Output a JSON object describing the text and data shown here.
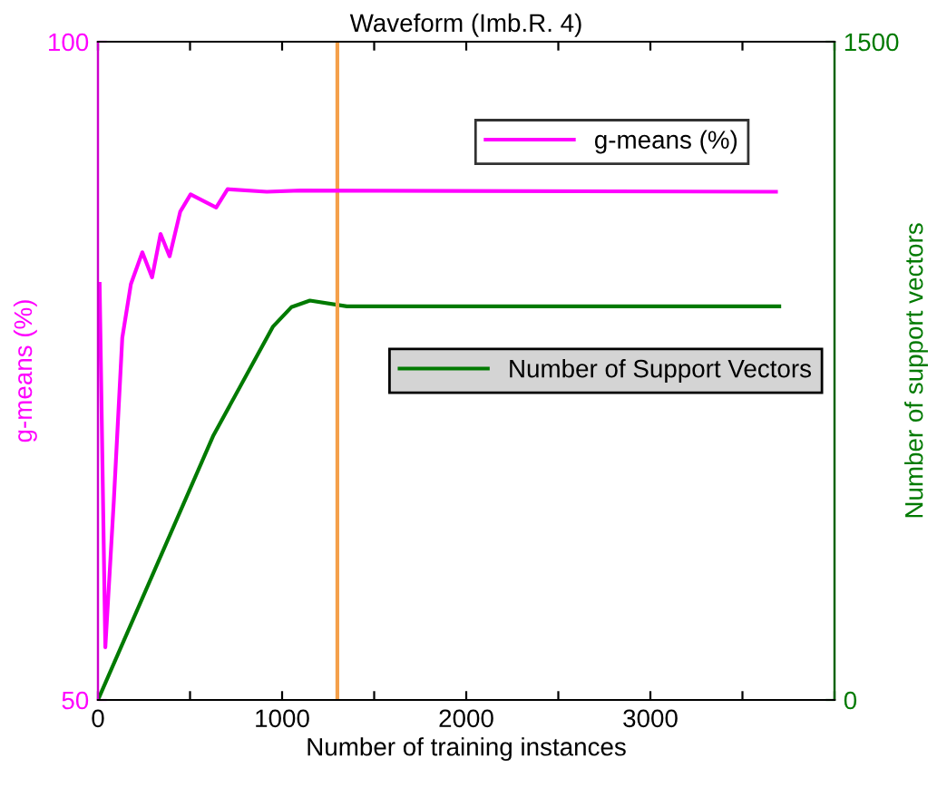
{
  "chart_data": {
    "type": "line",
    "title": "Waveform (Imb.R. 4)",
    "xlabel": "Number of training instances",
    "ylabel": "g-means (%)",
    "y2label": "Number of support vectors",
    "xlim": [
      0,
      4000
    ],
    "xticks": [
      0,
      {
        "value": 500,
        "label": null
      },
      1000,
      {
        "value": 1500,
        "label": null
      },
      2000,
      {
        "value": 2500,
        "label": null
      },
      3000,
      {
        "value": 3500,
        "label": null
      },
      {
        "value": 4000,
        "label": null
      }
    ],
    "ylim": [
      50,
      100
    ],
    "yticks": [
      50,
      100
    ],
    "y2lim": [
      0,
      1500
    ],
    "y2ticks": [
      0,
      1500
    ],
    "series": [
      {
        "name": "g-means (%)",
        "color": "#ff00ff",
        "x": [
          9,
          40,
          86,
          132,
          179,
          241,
          294,
          340,
          389,
          447,
          503,
          642,
          704,
          917,
          1100,
          3682
        ],
        "values": [
          81.6,
          54.0,
          65.1,
          77.5,
          81.6,
          84.0,
          82.1,
          85.4,
          83.7,
          87.1,
          88.4,
          87.4,
          88.8,
          88.6,
          88.7,
          88.6
        ]
      },
      {
        "name": "Number of Support Vectors",
        "color": "#007a00",
        "axis": "y2",
        "x": [
          0,
          627,
          951,
          1050,
          1151,
          1352,
          3700
        ],
        "values": [
          0,
          603,
          851,
          895,
          910,
          897,
          897
        ]
      }
    ],
    "ref_lines": [
      {
        "axis": "x",
        "value": 1300,
        "color": "#f5a04a"
      }
    ],
    "legend": "right",
    "grid": false
  }
}
